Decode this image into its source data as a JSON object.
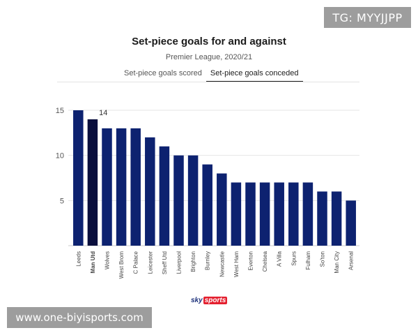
{
  "watermark_top": "TG: MYYJJPP",
  "watermark_bottom": "www.one-biyisports.com",
  "tabs": [
    {
      "label": "Set-piece goals scored",
      "active": false
    },
    {
      "label": "Set-piece goals conceded",
      "active": true
    }
  ],
  "logo": {
    "sky": "sky",
    "sports": "sports"
  },
  "colors": {
    "bar": "#0d2270",
    "highlight": "#0a0f3d",
    "grid": "#e6e6e6",
    "axis": "#555555"
  },
  "chart_data": {
    "type": "bar",
    "title": "Set-piece goals for and against",
    "subtitle": "Premier League, 2020/21",
    "categories": [
      "Leeds",
      "Man Utd",
      "Wolves",
      "West Brom",
      "C Palace",
      "Leicester",
      "Sheff Utd",
      "Liverpool",
      "Brighton",
      "Burnley",
      "Newcastle",
      "West Ham",
      "Everton",
      "Chelsea",
      "A Villa",
      "Spurs",
      "Fulham",
      "So'ton",
      "Man City",
      "Arsenal"
    ],
    "values": [
      15,
      14,
      13,
      13,
      13,
      12,
      11,
      10,
      10,
      9,
      8,
      7,
      7,
      7,
      7,
      7,
      7,
      6,
      6,
      5
    ],
    "highlight": {
      "category": "Man Utd",
      "label": "14"
    },
    "yticks": [
      5,
      10,
      15
    ],
    "ylim": [
      0,
      15
    ],
    "grid": true,
    "legend": "none"
  }
}
